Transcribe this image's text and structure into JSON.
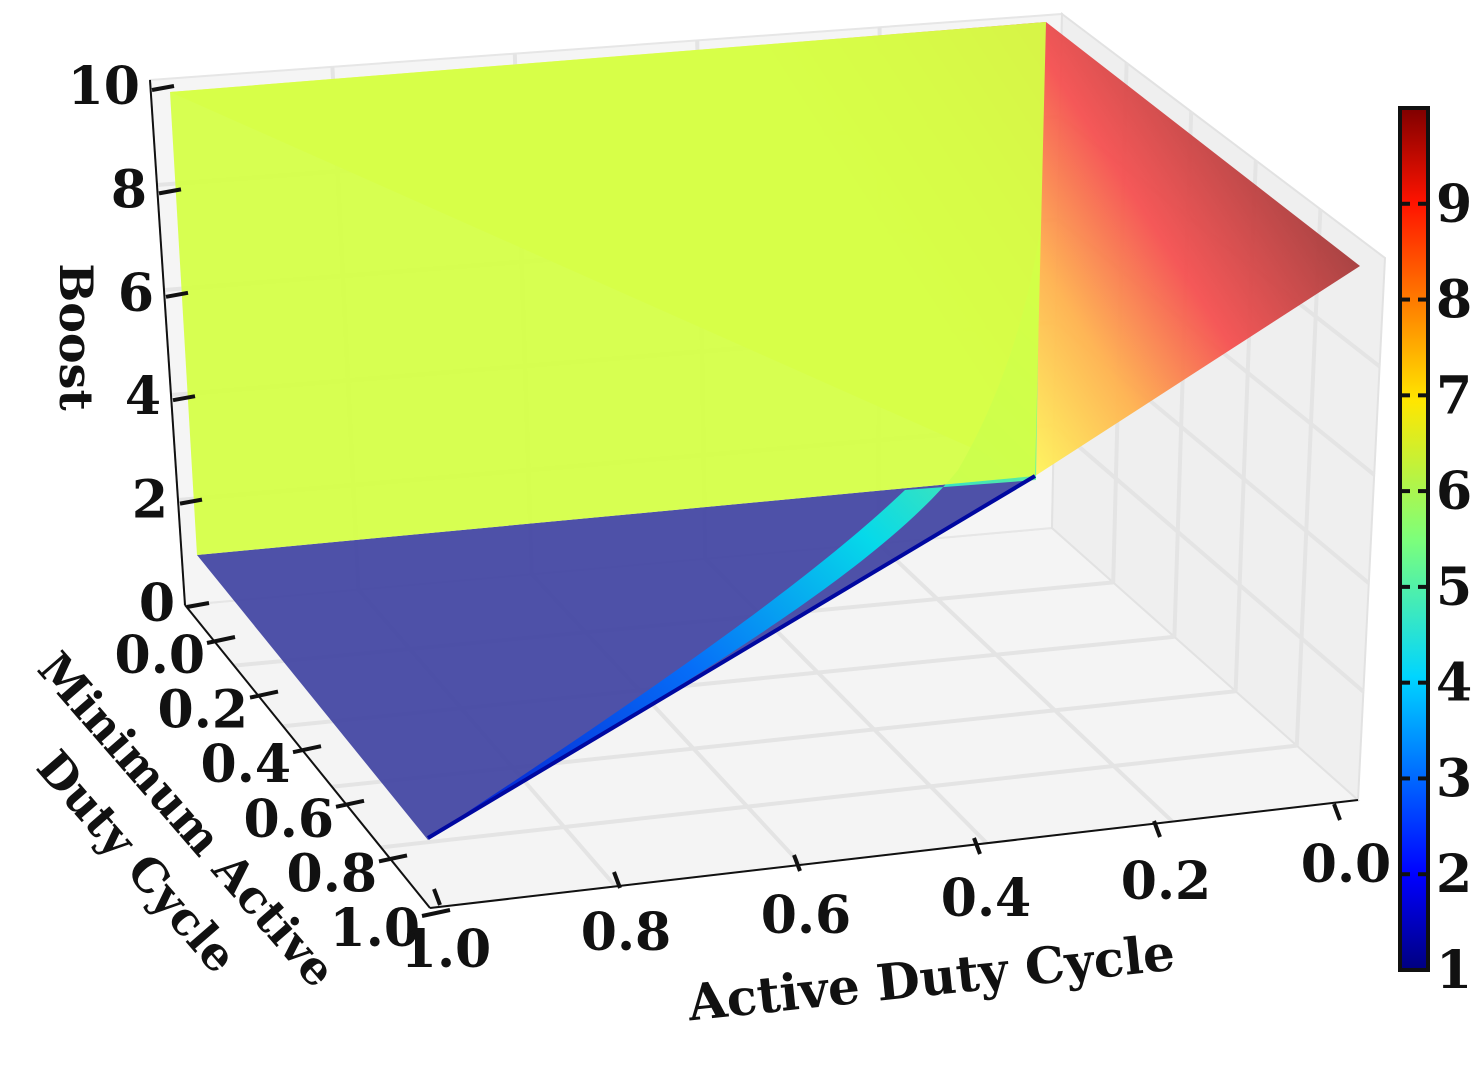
{
  "chart_data": {
    "type": "surface3d",
    "title": "",
    "xlabel": "Active Duty Cycle",
    "ylabel_lines": [
      "Minimum Active",
      "Duty Cycle"
    ],
    "zlabel": "Boost",
    "x_ticks": [
      "1.0",
      "0.8",
      "0.6",
      "0.4",
      "0.2",
      "0.0"
    ],
    "y_ticks": [
      "0.0",
      "0.2",
      "0.4",
      "0.6",
      "0.8",
      "1.0"
    ],
    "z_ticks": [
      "0",
      "2",
      "4",
      "6",
      "8",
      "10"
    ],
    "x_range": [
      0,
      1
    ],
    "y_range": [
      0,
      1
    ],
    "z_range": [
      0,
      10
    ],
    "colormap": "jet",
    "colorbar": {
      "ticks": [
        "1",
        "2",
        "3",
        "4",
        "5",
        "6",
        "7",
        "8",
        "9"
      ],
      "range": [
        1,
        10
      ]
    },
    "surfaces": [
      {
        "region": "active duty cycle >= minimum active duty cycle",
        "boost": 1,
        "color": "#3c3fa0"
      },
      {
        "region": "minimum active duty cycle = 0, active duty cycle below minimum",
        "boost": 6.1,
        "color": "#d4ff46"
      },
      {
        "region": "active duty cycle = 0",
        "boost_range": [
          1,
          10
        ],
        "note": "boost rises linearly from 1 to 10 as minimum active duty cycle goes from 0 to 1"
      }
    ],
    "grid": true,
    "pane_color": "#f2f2f2"
  }
}
